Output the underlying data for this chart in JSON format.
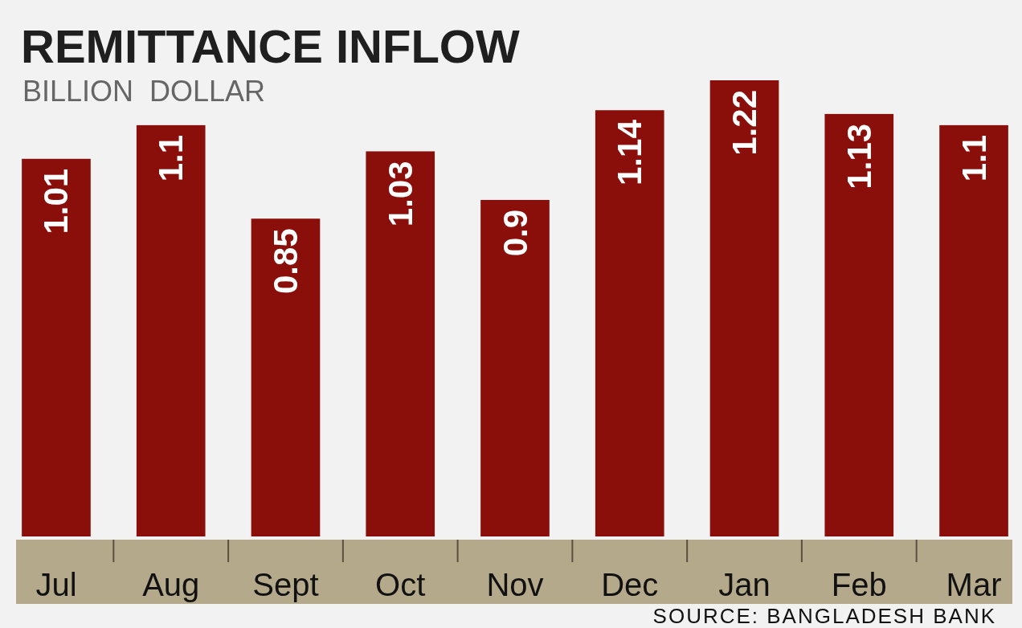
{
  "chart_data": {
    "type": "bar",
    "title": "REMITTANCE INFLOW",
    "subtitle": "BILLION  DOLLAR",
    "categories": [
      "Jul",
      "Aug",
      "Sept",
      "Oct",
      "Nov",
      "Dec",
      "Jan",
      "Feb",
      "Mar"
    ],
    "values": [
      1.01,
      1.1,
      0.85,
      1.03,
      0.9,
      1.14,
      1.22,
      1.13,
      1.1
    ],
    "color": "#8a0f0a",
    "data_labels": true,
    "annotations": [
      "SOURCE: BANGLADESH BANK"
    ]
  }
}
